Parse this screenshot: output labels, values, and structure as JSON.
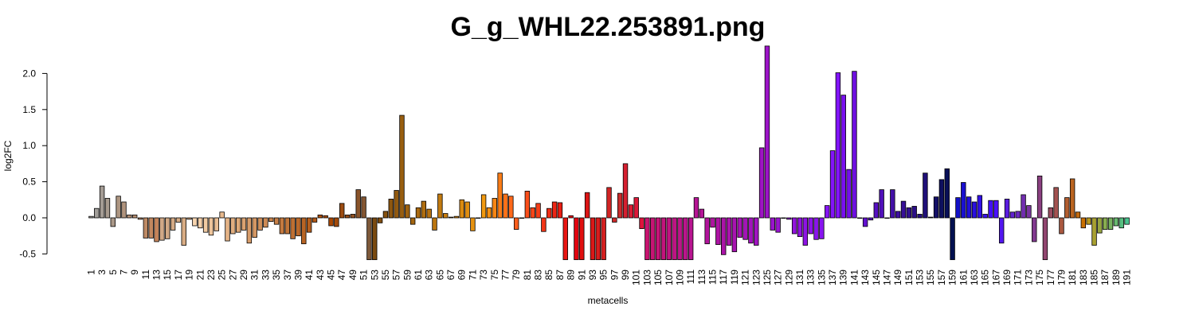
{
  "chart_data": {
    "type": "bar",
    "title": "G_g_WHL22.253891.png",
    "xlabel": "metacells",
    "ylabel": "log2FC",
    "ylim": [
      -0.58,
      2.38
    ],
    "yticks": [
      -0.5,
      0.0,
      0.5,
      1.0,
      1.5,
      2.0
    ],
    "ytick_labels": [
      "-0.5",
      "0.0",
      "0.5",
      "1.0",
      "1.5",
      "2.0"
    ],
    "x_tick_labels": [
      "1",
      "3",
      "5",
      "7",
      "9",
      "11",
      "13",
      "15",
      "17",
      "19",
      "21",
      "23",
      "25",
      "27",
      "29",
      "31",
      "33",
      "35",
      "37",
      "39",
      "41",
      "43",
      "45",
      "47",
      "49",
      "51",
      "53",
      "55",
      "57",
      "59",
      "61",
      "63",
      "65",
      "67",
      "69",
      "71",
      "73",
      "75",
      "77",
      "79",
      "81",
      "83",
      "85",
      "87",
      "89",
      "91",
      "93",
      "95",
      "97",
      "99",
      "101",
      "103",
      "105",
      "107",
      "109",
      "111",
      "113",
      "115",
      "117",
      "119",
      "121",
      "123",
      "125",
      "127",
      "129",
      "131",
      "133",
      "135",
      "137",
      "139",
      "141",
      "143",
      "145",
      "147",
      "149",
      "151",
      "153",
      "155",
      "157",
      "159",
      "161",
      "163",
      "165",
      "167",
      "169",
      "171",
      "173",
      "175",
      "177",
      "179",
      "181",
      "183",
      "185",
      "187",
      "189",
      "191"
    ],
    "grid": false,
    "legend": "none",
    "values": [
      0.02,
      0.13,
      0.44,
      0.27,
      -0.12,
      0.3,
      0.22,
      0.04,
      0.04,
      -0.02,
      -0.28,
      -0.28,
      -0.33,
      -0.31,
      -0.29,
      -0.17,
      -0.06,
      -0.38,
      -0.02,
      -0.11,
      -0.14,
      -0.2,
      -0.24,
      -0.18,
      0.08,
      -0.32,
      -0.22,
      -0.2,
      -0.17,
      -0.35,
      -0.27,
      -0.17,
      -0.13,
      -0.05,
      -0.09,
      -0.22,
      -0.22,
      -0.29,
      -0.25,
      -0.36,
      -0.2,
      -0.06,
      0.04,
      0.03,
      -0.11,
      -0.12,
      0.2,
      0.04,
      0.05,
      0.39,
      0.29,
      -0.58,
      -0.58,
      -0.07,
      0.09,
      0.26,
      0.38,
      1.42,
      0.18,
      -0.09,
      0.14,
      0.23,
      0.12,
      -0.17,
      0.33,
      0.06,
      0.01,
      0.02,
      0.25,
      0.22,
      -0.18,
      0.0,
      0.32,
      0.14,
      0.27,
      0.62,
      0.33,
      0.3,
      -0.16,
      0.0,
      0.37,
      0.14,
      0.2,
      -0.19,
      0.13,
      0.22,
      0.21,
      -0.58,
      0.03,
      -0.58,
      -0.58,
      0.35,
      -0.58,
      -0.58,
      -0.58,
      0.42,
      -0.06,
      0.34,
      0.75,
      0.18,
      0.28,
      -0.15,
      -0.58,
      -0.58,
      -0.58,
      -0.58,
      -0.58,
      -0.58,
      -0.58,
      -0.58,
      -0.58,
      0.28,
      0.12,
      -0.36,
      -0.13,
      -0.37,
      -0.51,
      -0.38,
      -0.47,
      -0.27,
      -0.3,
      -0.35,
      -0.38,
      0.97,
      2.38,
      -0.17,
      -0.2,
      0.0,
      -0.02,
      -0.22,
      -0.26,
      -0.38,
      -0.22,
      -0.3,
      -0.29,
      0.17,
      0.93,
      2.01,
      1.7,
      0.67,
      2.03,
      0.0,
      -0.12,
      -0.03,
      0.21,
      0.39,
      0.0,
      0.39,
      0.09,
      0.23,
      0.14,
      0.16,
      0.05,
      0.62,
      0.01,
      0.29,
      0.53,
      0.68,
      -0.58,
      0.28,
      0.49,
      0.29,
      0.22,
      0.31,
      0.05,
      0.24,
      0.24,
      -0.35,
      0.26,
      0.08,
      0.09,
      0.32,
      0.17,
      -0.33,
      0.58,
      -0.58,
      0.14,
      0.42,
      -0.22,
      0.28,
      0.54,
      0.08,
      -0.14,
      -0.09,
      -0.38,
      -0.21,
      -0.16,
      -0.16,
      -0.11,
      -0.14,
      -0.09
    ],
    "colors": [
      "#a2a09c",
      "#a29f9a",
      "#a49c94",
      "#a79a8e",
      "#aa9888",
      "#ad9682",
      "#b0937d",
      "#b49177",
      "#b78f71",
      "#bb8c6b",
      "#be8a65",
      "#c2875f",
      "#c5845a",
      "#d0a886",
      "#d2a985",
      "#d4aa85",
      "#d6ab84",
      "#d8ac84",
      "#dbae83",
      "#f7d5b0",
      "#f4cfa9",
      "#f0caa2",
      "#edc49b",
      "#eabe94",
      "#e7b98d",
      "#e4b386",
      "#e0ad7f",
      "#dda878",
      "#daa271",
      "#d79c6a",
      "#d49763",
      "#d1915c",
      "#ce8b55",
      "#cb864e",
      "#c88047",
      "#c47a40",
      "#c17539",
      "#be6f32",
      "#bb692b",
      "#b86424",
      "#b55e1d",
      "#b25816",
      "#af530f",
      "#ac4d08",
      "#a94701",
      "#a24a0a",
      "#9c4c12",
      "#964f1a",
      "#905122",
      "#8a542a",
      "#845632",
      "#7e593a",
      "#7a4a10",
      "#804e10",
      "#865210",
      "#8c5610",
      "#925a10",
      "#985e10",
      "#9e6210",
      "#a46610",
      "#aa6a10",
      "#b06e10",
      "#b67210",
      "#bc7610",
      "#c27a10",
      "#c87e10",
      "#ce8210",
      "#d48610",
      "#da8a10",
      "#e08e10",
      "#e69210",
      "#ec9610",
      "#f29a10",
      "#f59012",
      "#f78614",
      "#f97c16",
      "#fb7218",
      "#fd681a",
      "#ff5e1c",
      "#fc561b",
      "#fa4e1a",
      "#f74619",
      "#f53e18",
      "#f23617",
      "#f02e16",
      "#ed2615",
      "#eb1e14",
      "#e81613",
      "#e60e12",
      "#e30611",
      "#e01010",
      "#dd1414",
      "#da1818",
      "#d71c1c",
      "#d42020",
      "#d12424",
      "#ce2828",
      "#cb2c2c",
      "#d52030",
      "#d81c34",
      "#db1838",
      "#de143c",
      "#c81470",
      "#c61474",
      "#c41478",
      "#c2147c",
      "#c01480",
      "#be1484",
      "#bc1488",
      "#ba148c",
      "#b81490",
      "#b61494",
      "#b41498",
      "#b2149c",
      "#b014a0",
      "#ae14a4",
      "#ac14a8",
      "#aa14ac",
      "#a814b0",
      "#a614b4",
      "#a414b8",
      "#a214bc",
      "#a014c0",
      "#9e14c4",
      "#9c14c8",
      "#9a14cc",
      "#9814d0",
      "#9614d4",
      "#9414d8",
      "#9214dc",
      "#9014e0",
      "#8e14e4",
      "#8c14e8",
      "#8a14ec",
      "#8814f0",
      "#8614f4",
      "#8414f8",
      "#8214fc",
      "#7a10f0",
      "#7410e8",
      "#6e10e0",
      "#6810d8",
      "#6210d0",
      "#5c10c8",
      "#5610c0",
      "#5010b8",
      "#4a10b0",
      "#4410a8",
      "#3e10a0",
      "#381098",
      "#321090",
      "#2c1088",
      "#261080",
      "#201078",
      "#1a1070",
      "#141068",
      "#0e1060",
      "#081058",
      "#021050",
      "#1210c8",
      "#1a10d0",
      "#2210d8",
      "#2a10e0",
      "#3210e8",
      "#3a10f0",
      "#4210f8",
      "#4a10ff",
      "#5216f0",
      "#5a1ce0",
      "#6222d0",
      "#6a28c0",
      "#722eb0",
      "#7a34a0",
      "#823a90",
      "#8a4080",
      "#924670",
      "#9a4c60",
      "#a25250",
      "#aa5840",
      "#b25e30",
      "#ba6420",
      "#c26a10",
      "#ca7000",
      "#b89a20",
      "#a8a030",
      "#98a640",
      "#88ac50",
      "#78b260",
      "#68b870",
      "#58be80",
      "#48c490",
      "#38caa0",
      "#28d0b0",
      "#18d6c0",
      "#08dcd0",
      "#20e0c8",
      "#26e2cc",
      "#2ce4d0",
      "#32e6d4"
    ]
  }
}
